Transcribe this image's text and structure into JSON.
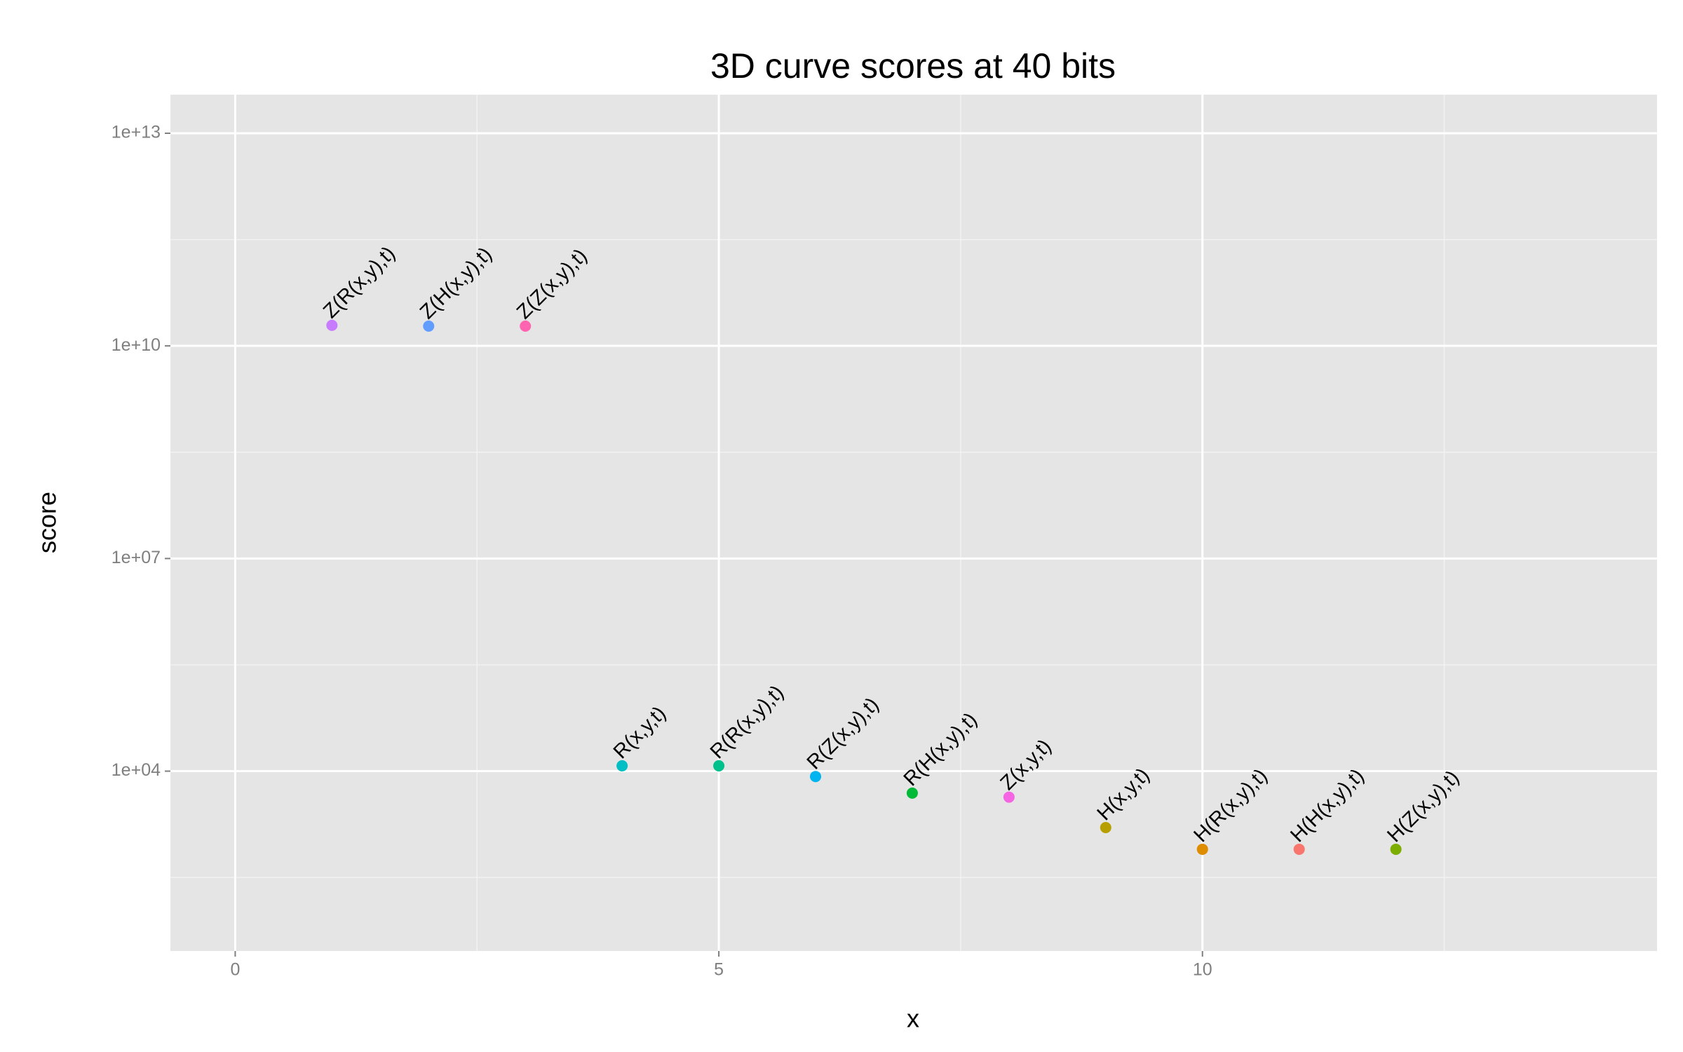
{
  "chart_data": {
    "type": "scatter",
    "title": "3D curve scores at 40 bits",
    "x_label": "x",
    "y_label": "score",
    "x": [
      1,
      2,
      3,
      4,
      5,
      6,
      7,
      8,
      9,
      10,
      11,
      12
    ],
    "values": [
      19500000000,
      19000000000,
      19000000000,
      11900,
      11900,
      8400,
      4900,
      4300,
      1600,
      790,
      790,
      790
    ],
    "point_labels": [
      "Z(R(x,y),t)",
      "Z(H(x,y),t)",
      "Z(Z(x,y),t)",
      "R(x,y,t)",
      "R(R(x,y),t)",
      "R(Z(x,y),t)",
      "R(H(x,y),t)",
      "Z(x,y,t)",
      "H(x,y,t)",
      "H(R(x,y),t)",
      "H(H(x,y),t)",
      "H(Z(x,y),t)"
    ],
    "colors": [
      "#C77CFF",
      "#619CFF",
      "#FF64B0",
      "#00BFC4",
      "#00C08B",
      "#00B4F0",
      "#00BA38",
      "#F564E3",
      "#B79F00",
      "#DE8C00",
      "#F8766D",
      "#7CAE00"
    ],
    "xlim": [
      -0.67,
      14.7
    ],
    "xticks": [
      0,
      5,
      10
    ],
    "x_minor_ticks": [
      2.5,
      7.5,
      12.5
    ],
    "ylim": [
      29,
      35000000000000
    ],
    "y_scale": "log",
    "yticks": [
      {
        "value": 10000,
        "label": "1e+04"
      },
      {
        "value": 10000000,
        "label": "1e+07"
      },
      {
        "value": 10000000000,
        "label": "1e+10"
      },
      {
        "value": 10000000000000,
        "label": "1e+13"
      }
    ],
    "y_minor_ticks": [
      316.23,
      316228,
      316227766,
      316227766017
    ],
    "grid": true
  }
}
